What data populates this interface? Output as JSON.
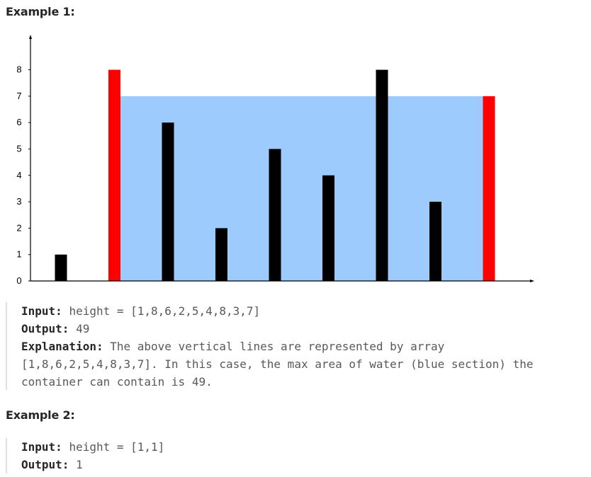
{
  "example1": {
    "title": "Example 1:",
    "input_label": "Input:",
    "input_value": "height = [1,8,6,2,5,4,8,3,7]",
    "output_label": "Output:",
    "output_value": "49",
    "explanation_label": "Explanation:",
    "explanation_line1": "The above vertical lines are represented by array",
    "explanation_line2": "[1,8,6,2,5,4,8,3,7]. In this case, the max area of water (blue section) the",
    "explanation_line3": "container can contain is 49."
  },
  "example2": {
    "title": "Example 2:",
    "input_label": "Input:",
    "input_value": "height = [1,1]",
    "output_label": "Output:",
    "output_value": "1"
  },
  "chart_data": {
    "type": "bar",
    "values": [
      1,
      8,
      6,
      2,
      5,
      4,
      8,
      3,
      7
    ],
    "highlight_indices": [
      1,
      8
    ],
    "water_level": 7,
    "water_range": [
      1,
      8
    ],
    "y_ticks": [
      "0",
      "1",
      "2",
      "3",
      "4",
      "5",
      "6",
      "7",
      "8"
    ],
    "ylim": [
      0,
      9
    ],
    "colors": {
      "bar": "#000000",
      "highlight": "#ff0000",
      "water": "#9ecbfd",
      "axis": "#000000"
    }
  }
}
